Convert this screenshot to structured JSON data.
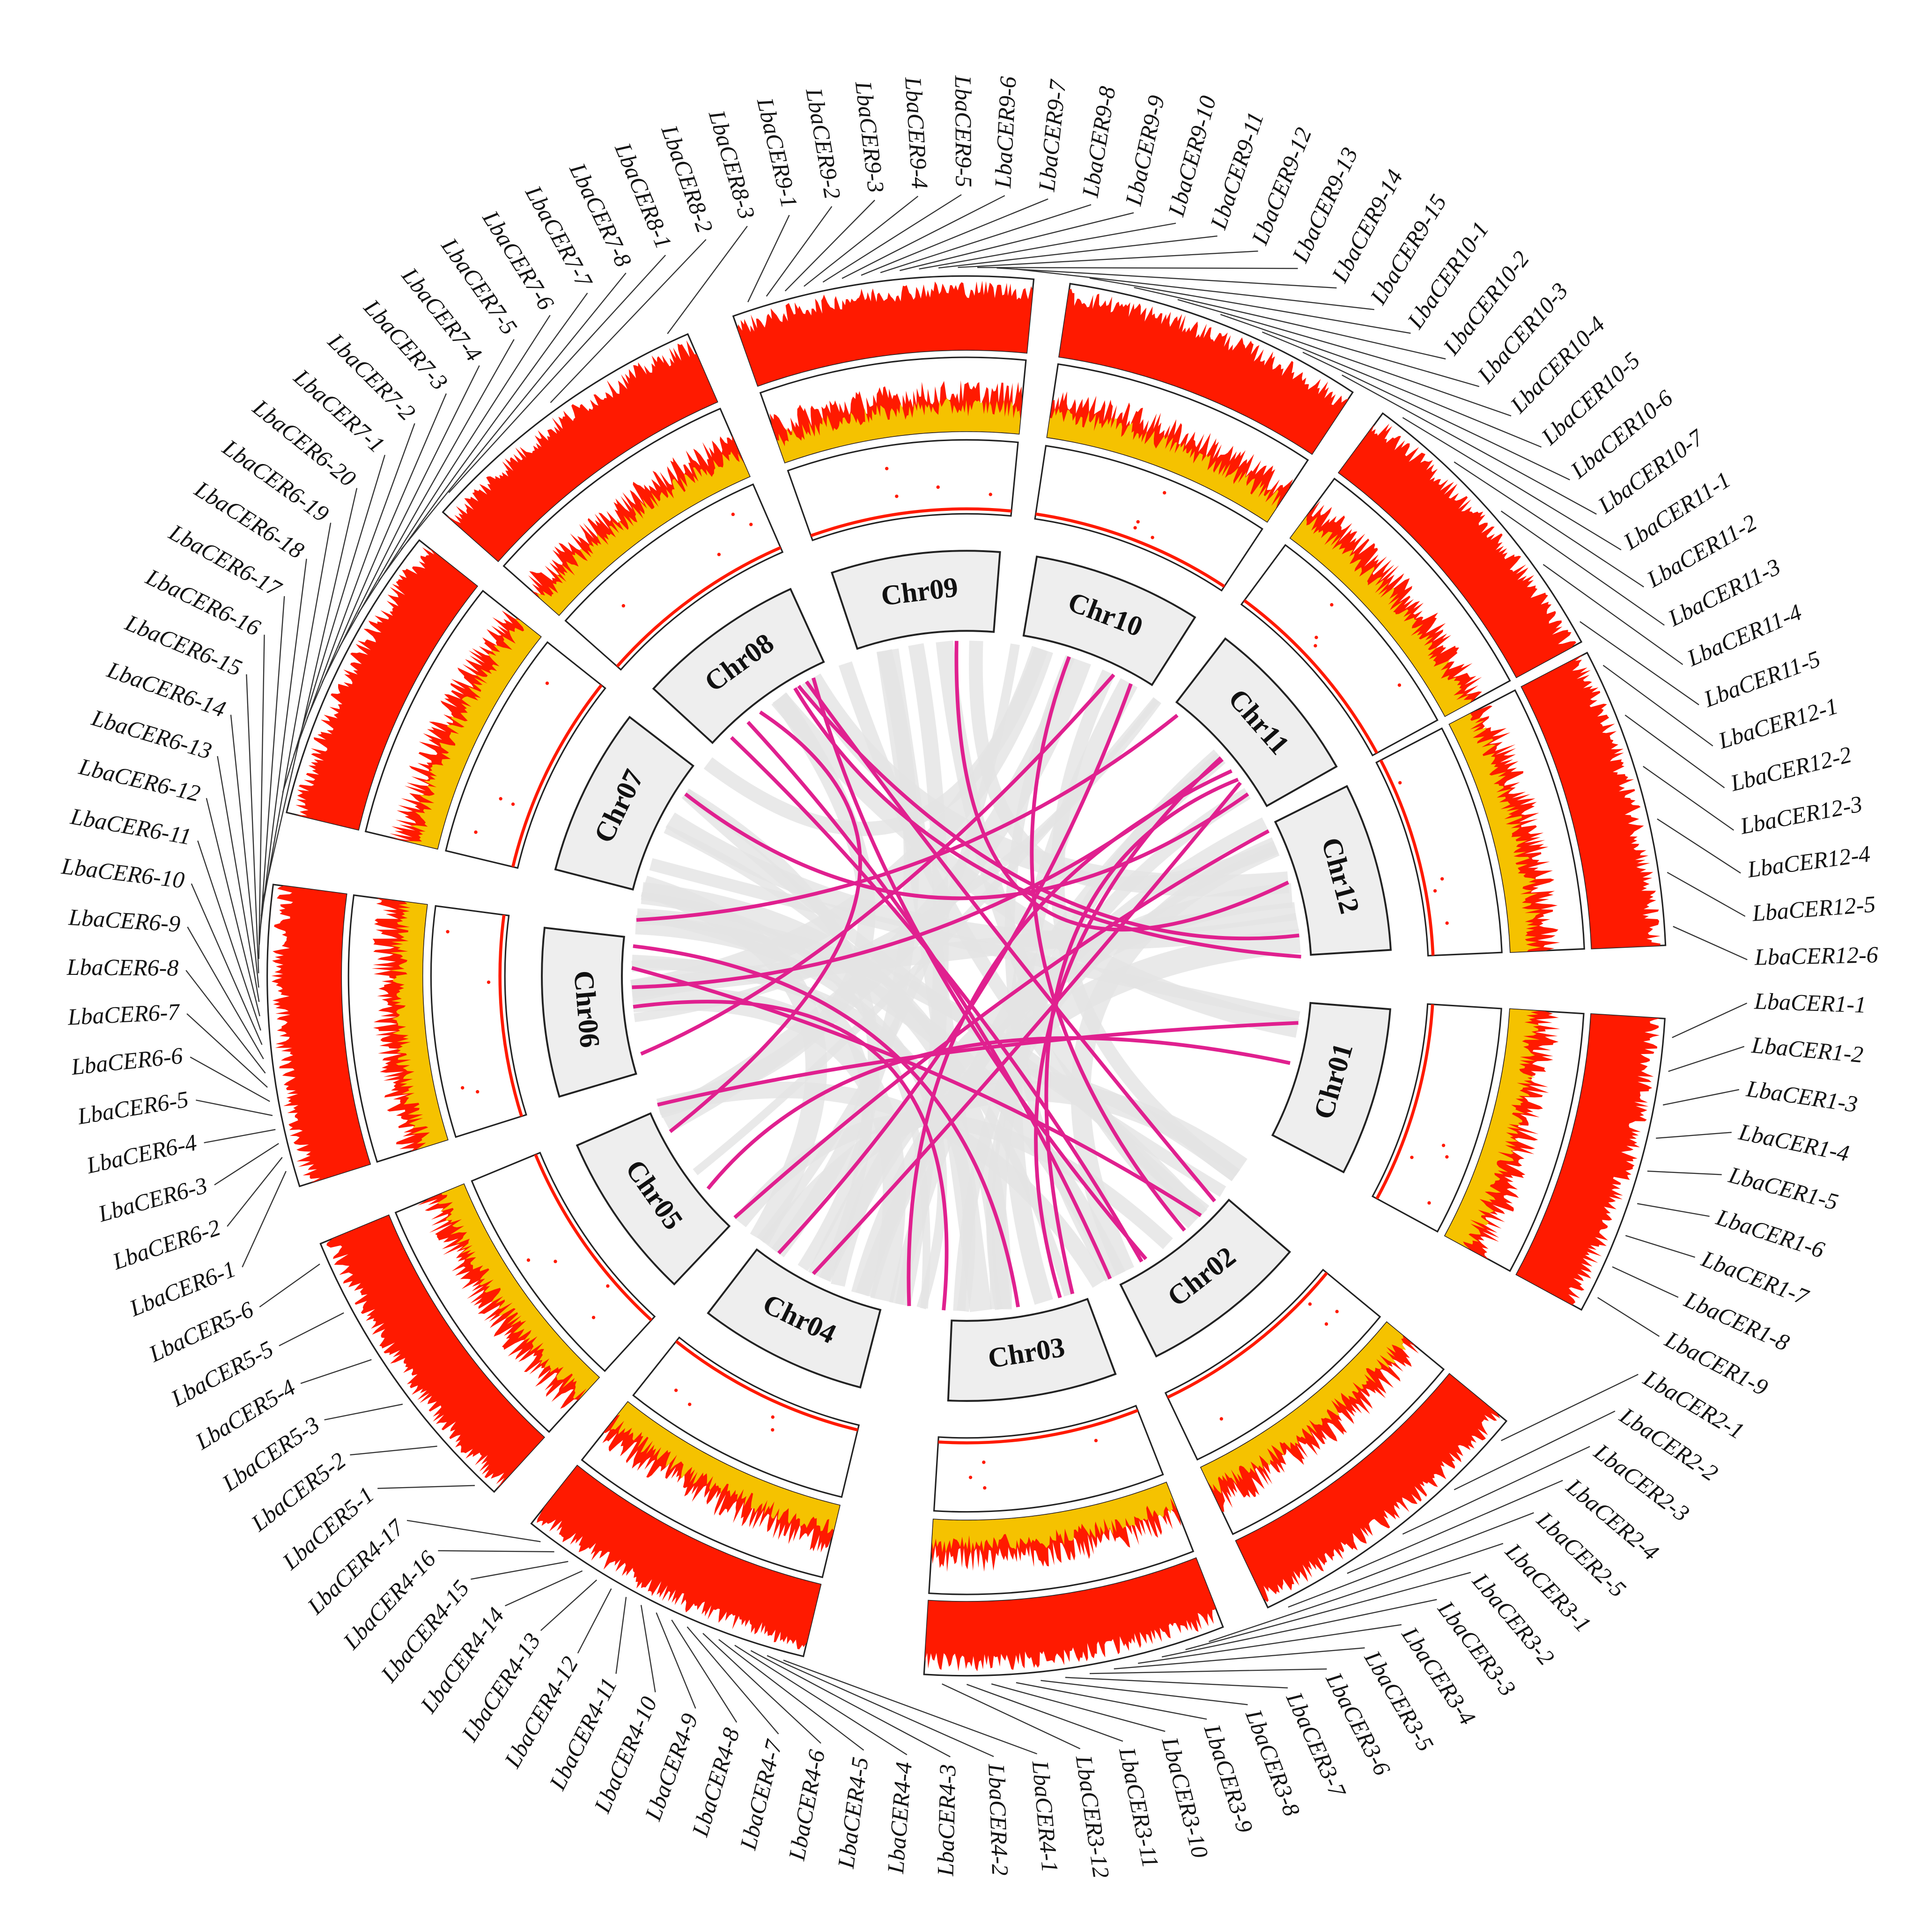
{
  "chromosomes": [
    {
      "name": "Chr01",
      "genes": [
        "LbaCER1-1",
        "LbaCER1-2",
        "LbaCER1-3",
        "LbaCER1-4",
        "LbaCER1-5",
        "LbaCER1-6",
        "LbaCER1-7",
        "LbaCER1-8",
        "LbaCER1-9"
      ]
    },
    {
      "name": "Chr02",
      "genes": [
        "LbaCER2-1",
        "LbaCER2-2",
        "LbaCER2-3",
        "LbaCER2-4",
        "LbaCER2-5"
      ]
    },
    {
      "name": "Chr03",
      "genes": [
        "LbaCER3-1",
        "LbaCER3-2",
        "LbaCER3-3",
        "LbaCER3-4",
        "LbaCER3-5",
        "LbaCER3-6",
        "LbaCER3-7",
        "LbaCER3-8",
        "LbaCER3-9",
        "LbaCER3-10",
        "LbaCER3-11",
        "LbaCER3-12"
      ]
    },
    {
      "name": "Chr04",
      "genes": [
        "LbaCER4-1",
        "LbaCER4-2",
        "LbaCER4-3",
        "LbaCER4-4",
        "LbaCER4-5",
        "LbaCER4-6",
        "LbaCER4-7",
        "LbaCER4-8",
        "LbaCER4-9",
        "LbaCER4-10",
        "LbaCER4-11",
        "LbaCER4-12",
        "LbaCER4-13",
        "LbaCER4-14",
        "LbaCER4-15",
        "LbaCER4-16",
        "LbaCER4-17"
      ]
    },
    {
      "name": "Chr05",
      "genes": [
        "LbaCER5-1",
        "LbaCER5-2",
        "LbaCER5-3",
        "LbaCER5-4",
        "LbaCER5-5",
        "LbaCER5-6"
      ]
    },
    {
      "name": "Chr06",
      "genes": [
        "LbaCER6-1",
        "LbaCER6-2",
        "LbaCER6-3",
        "LbaCER6-4",
        "LbaCER6-5",
        "LbaCER6-6",
        "LbaCER6-7",
        "LbaCER6-8",
        "LbaCER6-9",
        "LbaCER6-10",
        "LbaCER6-11",
        "LbaCER6-12",
        "LbaCER6-13",
        "LbaCER6-14",
        "LbaCER6-15",
        "LbaCER6-16",
        "LbaCER6-17",
        "LbaCER6-18",
        "LbaCER6-19",
        "LbaCER6-20"
      ]
    },
    {
      "name": "Chr07",
      "genes": [
        "LbaCER7-1",
        "LbaCER7-2",
        "LbaCER7-3",
        "LbaCER7-4",
        "LbaCER7-5",
        "LbaCER7-6",
        "LbaCER7-7",
        "LbaCER7-8"
      ]
    },
    {
      "name": "Chr08",
      "genes": [
        "LbaCER8-1",
        "LbaCER8-2",
        "LbaCER8-3"
      ]
    },
    {
      "name": "Chr09",
      "genes": [
        "LbaCER9-1",
        "LbaCER9-2",
        "LbaCER9-3",
        "LbaCER9-4",
        "LbaCER9-5",
        "LbaCER9-6",
        "LbaCER9-7",
        "LbaCER9-8",
        "LbaCER9-9",
        "LbaCER9-10",
        "LbaCER9-11",
        "LbaCER9-12",
        "LbaCER9-13",
        "LbaCER9-14",
        "LbaCER9-15"
      ]
    },
    {
      "name": "Chr10",
      "genes": [
        "LbaCER10-1",
        "LbaCER10-2",
        "LbaCER10-3",
        "LbaCER10-4",
        "LbaCER10-5",
        "LbaCER10-6",
        "LbaCER10-7"
      ]
    },
    {
      "name": "Chr11",
      "genes": [
        "LbaCER11-1",
        "LbaCER11-2",
        "LbaCER11-3",
        "LbaCER11-4",
        "LbaCER11-5"
      ]
    },
    {
      "name": "Chr12",
      "genes": [
        "LbaCER12-1",
        "LbaCER12-2",
        "LbaCER12-3",
        "LbaCER12-4",
        "LbaCER12-5",
        "LbaCER12-6"
      ]
    }
  ]
}
